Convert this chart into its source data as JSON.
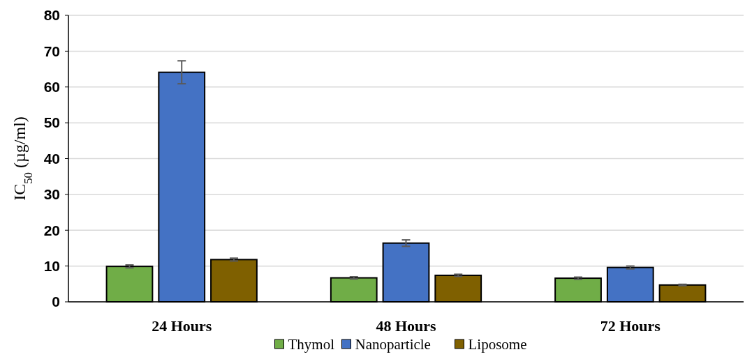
{
  "chart_data": {
    "type": "bar",
    "ylabel": "IC$_{50}$ (µg/ml)",
    "categories": [
      "24 Hours",
      "48 Hours",
      "72 Hours"
    ],
    "series": [
      {
        "name": "Thymol",
        "color": "#70ad47",
        "values": [
          9.9,
          6.7,
          6.6
        ],
        "errors": [
          0.4,
          0.3,
          0.3
        ]
      },
      {
        "name": "Nanoparticle",
        "color": "#4472c4",
        "values": [
          64.1,
          16.4,
          9.6
        ],
        "errors": [
          3.2,
          0.9,
          0.4
        ]
      },
      {
        "name": "Liposome",
        "color": "#7f6000",
        "values": [
          11.8,
          7.4,
          4.7
        ],
        "errors": [
          0.4,
          0.3,
          0.2
        ]
      }
    ],
    "ylim": [
      0,
      80
    ],
    "yticks": [
      0,
      10,
      20,
      30,
      40,
      50,
      60,
      70,
      80
    ],
    "grid": "y",
    "legend": "bottom"
  }
}
